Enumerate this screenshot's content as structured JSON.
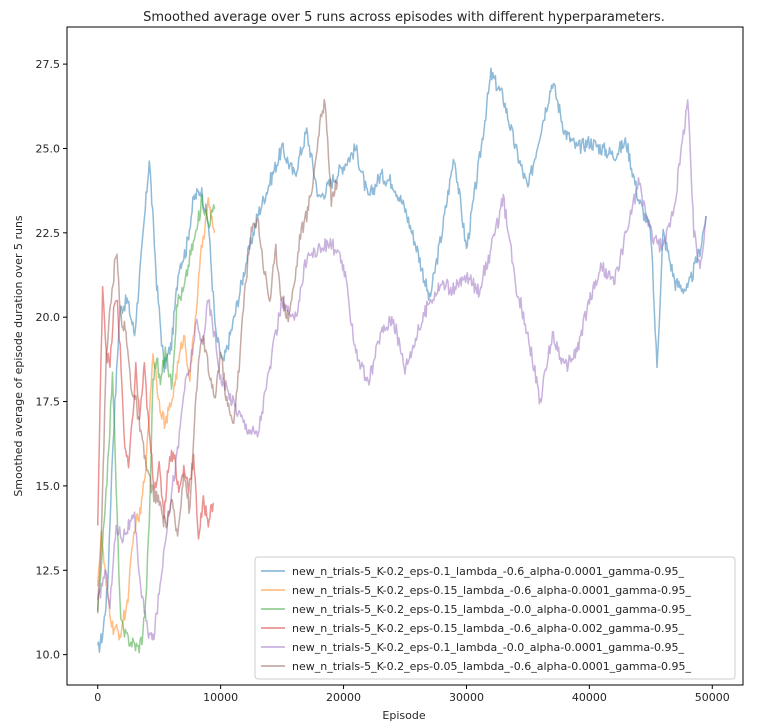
{
  "chart_data": {
    "type": "line",
    "title": "Smoothed average over 5 runs across episodes with different hyperparameters.",
    "xlabel": "Episode",
    "ylabel": "Smoothed average of episode duration over 5 runs",
    "xlim": [
      -2500,
      52500
    ],
    "ylim": [
      9.1,
      28.6
    ],
    "xticks": [
      0,
      10000,
      20000,
      30000,
      40000,
      50000
    ],
    "xtick_labels": [
      "0",
      "10000",
      "20000",
      "30000",
      "40000",
      "50000"
    ],
    "yticks": [
      10.0,
      12.5,
      15.0,
      17.5,
      20.0,
      22.5,
      25.0,
      27.5
    ],
    "ytick_labels": [
      "10.0",
      "12.5",
      "15.0",
      "17.5",
      "20.0",
      "22.5",
      "25.0",
      "27.5"
    ],
    "grid": false,
    "legend_position": "lower-right",
    "series": [
      {
        "name": "new_n_trials-5_K-0.2_eps-0.1_lambda_-0.6_alpha-0.0001_gamma-0.95_",
        "color": "#1f77b4",
        "x": [
          0,
          400,
          800,
          1200,
          1800,
          2400,
          3000,
          3600,
          4200,
          4800,
          5400,
          6000,
          6600,
          7200,
          7800,
          8400,
          9000,
          9600,
          10200,
          11000,
          12000,
          13000,
          14000,
          15000,
          16000,
          17000,
          18000,
          19000,
          20000,
          21000,
          22000,
          23000,
          24000,
          25000,
          26000,
          27000,
          28000,
          29000,
          30000,
          31000,
          32000,
          33000,
          34000,
          35000,
          36000,
          37000,
          38000,
          39000,
          40000,
          41000,
          42000,
          43000,
          44000,
          45000,
          45500,
          46000,
          47000,
          48000,
          49000,
          49500
        ],
        "y": [
          10.1,
          10.6,
          12.0,
          16.0,
          20.2,
          20.5,
          19.5,
          22.0,
          24.7,
          21.0,
          18.5,
          19.2,
          21.5,
          22.0,
          23.5,
          23.8,
          22.8,
          19.5,
          18.6,
          19.8,
          21.5,
          23.0,
          24.0,
          25.0,
          24.2,
          25.5,
          23.5,
          24.0,
          24.5,
          25.0,
          23.5,
          24.2,
          24.0,
          23.2,
          22.0,
          20.5,
          22.5,
          24.8,
          22.0,
          24.5,
          27.2,
          26.5,
          25.0,
          23.8,
          25.5,
          27.0,
          25.5,
          25.0,
          25.2,
          25.0,
          24.8,
          25.2,
          23.5,
          22.5,
          18.5,
          22.5,
          21.0,
          20.8,
          22.0,
          23.0
        ]
      },
      {
        "name": "new_n_trials-5_K-0.2_eps-0.15_lambda_-0.6_alpha-0.0001_gamma-0.95_",
        "color": "#ff7f0e",
        "x": [
          0,
          300,
          700,
          1200,
          1800,
          2400,
          3000,
          3500,
          4000,
          4500,
          5000,
          5500,
          6000,
          6500,
          7000,
          7500,
          8000,
          8500,
          9000,
          9500
        ],
        "y": [
          12.2,
          13.5,
          12.0,
          10.8,
          10.6,
          11.5,
          13.8,
          14.2,
          16.0,
          19.0,
          17.5,
          16.8,
          17.5,
          18.5,
          19.5,
          18.2,
          20.2,
          22.2,
          23.4,
          22.5
        ]
      },
      {
        "name": "new_n_trials-5_K-0.2_eps-0.15_lambda_-0.0_alpha-0.0001_gamma-0.95_",
        "color": "#2ca02c",
        "x": [
          0,
          300,
          600,
          900,
          1200,
          1500,
          1800,
          2100,
          2400,
          2700,
          3000,
          3300,
          3600,
          3900,
          4200,
          4500,
          4800,
          5100,
          5500,
          6000,
          6500,
          7000,
          7500,
          8000,
          8500,
          9000,
          9500
        ],
        "y": [
          11.3,
          12.5,
          14.5,
          16.0,
          18.5,
          15.0,
          11.5,
          10.6,
          10.5,
          10.4,
          10.3,
          10.2,
          10.5,
          11.5,
          14.0,
          18.2,
          18.8,
          18.0,
          19.0,
          18.0,
          20.5,
          20.8,
          21.8,
          22.5,
          23.5,
          22.8,
          23.2
        ]
      },
      {
        "name": "new_n_trials-5_K-0.2_eps-0.15_lambda_-0.6_alpha-0.002_gamma-0.95_",
        "color": "#d62728",
        "x": [
          0,
          200,
          400,
          700,
          1000,
          1300,
          1600,
          1900,
          2200,
          2500,
          2800,
          3100,
          3400,
          3800,
          4200,
          4600,
          5000,
          5400,
          5800,
          6200,
          6600,
          7000,
          7400,
          7800,
          8200,
          8600,
          9000,
          9400
        ],
        "y": [
          13.8,
          17.5,
          21.0,
          19.0,
          18.5,
          20.2,
          20.5,
          18.5,
          16.2,
          15.5,
          16.8,
          18.5,
          17.0,
          18.5,
          16.5,
          15.0,
          15.5,
          14.2,
          15.8,
          16.0,
          14.8,
          15.5,
          15.0,
          15.8,
          13.5,
          14.5,
          14.0,
          14.5
        ]
      },
      {
        "name": "new_n_trials-5_K-0.2_eps-0.1_lambda_-0.0_alpha-0.0001_gamma-0.95_",
        "color": "#9467bd",
        "x": [
          0,
          300,
          600,
          1000,
          1500,
          2000,
          2500,
          3000,
          3500,
          4000,
          4500,
          5000,
          5500,
          6000,
          6500,
          7000,
          7500,
          8000,
          8500,
          9000,
          9500,
          10000,
          11000,
          12000,
          13000,
          14000,
          15000,
          16000,
          17000,
          18000,
          19000,
          20000,
          21000,
          22000,
          23000,
          24000,
          25000,
          26000,
          27000,
          28000,
          29000,
          30000,
          31000,
          32000,
          33000,
          34000,
          35000,
          36000,
          37000,
          38000,
          39000,
          40000,
          41000,
          42000,
          43000,
          44000,
          45000,
          46000,
          47000,
          48000,
          48500,
          49000,
          49500
        ],
        "y": [
          11.5,
          12.0,
          12.5,
          11.5,
          13.8,
          13.5,
          13.8,
          14.0,
          12.0,
          10.8,
          10.4,
          11.8,
          13.5,
          14.8,
          16.0,
          17.8,
          18.5,
          19.8,
          19.2,
          20.5,
          19.5,
          18.2,
          17.5,
          16.8,
          16.5,
          18.5,
          20.5,
          19.8,
          21.8,
          22.0,
          22.2,
          21.5,
          19.0,
          18.0,
          19.5,
          20.0,
          18.5,
          19.5,
          20.5,
          21.0,
          20.8,
          21.2,
          20.8,
          22.0,
          23.5,
          21.0,
          19.5,
          17.5,
          19.5,
          18.5,
          19.0,
          20.5,
          21.5,
          21.0,
          22.5,
          24.0,
          22.5,
          22.0,
          23.5,
          26.5,
          22.5,
          21.5,
          23.0
        ]
      },
      {
        "name": "new_n_trials-5_K-0.2_eps-0.05_lambda_-0.6_alpha-0.0001_gamma-0.95_",
        "color": "#8c564b",
        "x": [
          0,
          300,
          700,
          1100,
          1500,
          1900,
          2300,
          2700,
          3100,
          3500,
          4000,
          4500,
          5000,
          5500,
          6000,
          6500,
          7000,
          7500,
          8000,
          8500,
          9000,
          9500,
          10000,
          10500,
          11000,
          11500,
          12000,
          12500,
          13000,
          13500,
          14000,
          14500,
          15000,
          15500,
          16000,
          16500,
          17000,
          17500,
          18000,
          18500,
          19000,
          19500
        ],
        "y": [
          11.5,
          13.5,
          19.0,
          20.5,
          22.0,
          20.0,
          19.5,
          18.0,
          17.5,
          16.5,
          15.5,
          14.8,
          14.5,
          13.8,
          14.5,
          13.5,
          15.5,
          14.2,
          17.8,
          19.5,
          18.5,
          17.5,
          19.0,
          17.5,
          16.8,
          18.5,
          21.0,
          22.5,
          23.0,
          21.5,
          20.5,
          22.0,
          20.5,
          20.0,
          21.0,
          22.5,
          23.0,
          24.0,
          25.5,
          26.5,
          23.5,
          24.0
        ]
      }
    ]
  }
}
